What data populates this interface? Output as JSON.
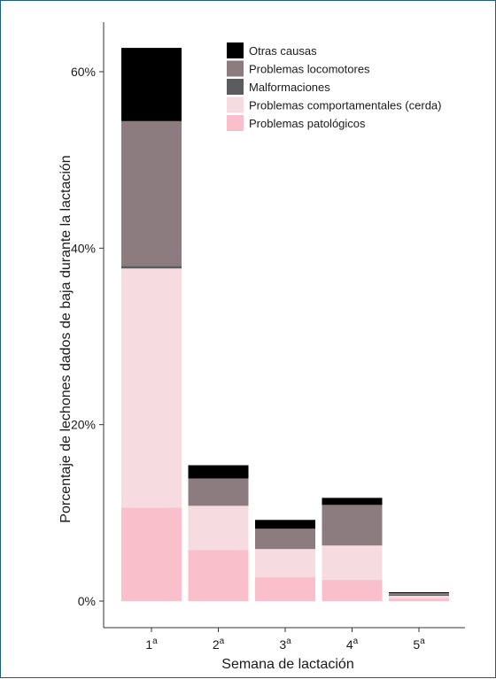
{
  "chart_data": {
    "type": "bar",
    "stacked": true,
    "title": "",
    "xlabel": "Semana de lactación",
    "ylabel": "Porcentaje de lechones dados de baja durante la lactación",
    "categories": [
      {
        "number": "1",
        "sup": "a"
      },
      {
        "number": "2",
        "sup": "a"
      },
      {
        "number": "3",
        "sup": "a"
      },
      {
        "number": "4",
        "sup": "a"
      },
      {
        "number": "5",
        "sup": "a"
      }
    ],
    "ylim": [
      0,
      66
    ],
    "yticks": [
      0,
      20,
      40,
      60
    ],
    "ytick_labels": [
      "0%",
      "20%",
      "40%",
      "60%"
    ],
    "grid": false,
    "legend_position": "top-right",
    "series": [
      {
        "name": "Problemas patológicos",
        "color": "#f9bfcb",
        "values": [
          10.6,
          5.8,
          2.7,
          2.4,
          0.3
        ]
      },
      {
        "name": "Problemas comportamentales (cerda)",
        "color": "#f6dce0",
        "values": [
          27.1,
          5.0,
          3.2,
          3.9,
          0.3
        ]
      },
      {
        "name": "Malformaciones",
        "color": "#5c5b5e",
        "values": [
          0.3,
          0.0,
          0.0,
          0.0,
          0.1
        ]
      },
      {
        "name": "Problemas locomotores",
        "color": "#8c7c80",
        "values": [
          16.4,
          3.1,
          2.3,
          4.6,
          0.2
        ]
      },
      {
        "name": "Otras causas",
        "color": "#000000",
        "values": [
          8.3,
          1.5,
          1.0,
          0.8,
          0.1
        ]
      }
    ],
    "legend_order": [
      "Otras causas",
      "Problemas locomotores",
      "Malformaciones",
      "Problemas comportamentales (cerda)",
      "Problemas patológicos"
    ]
  }
}
